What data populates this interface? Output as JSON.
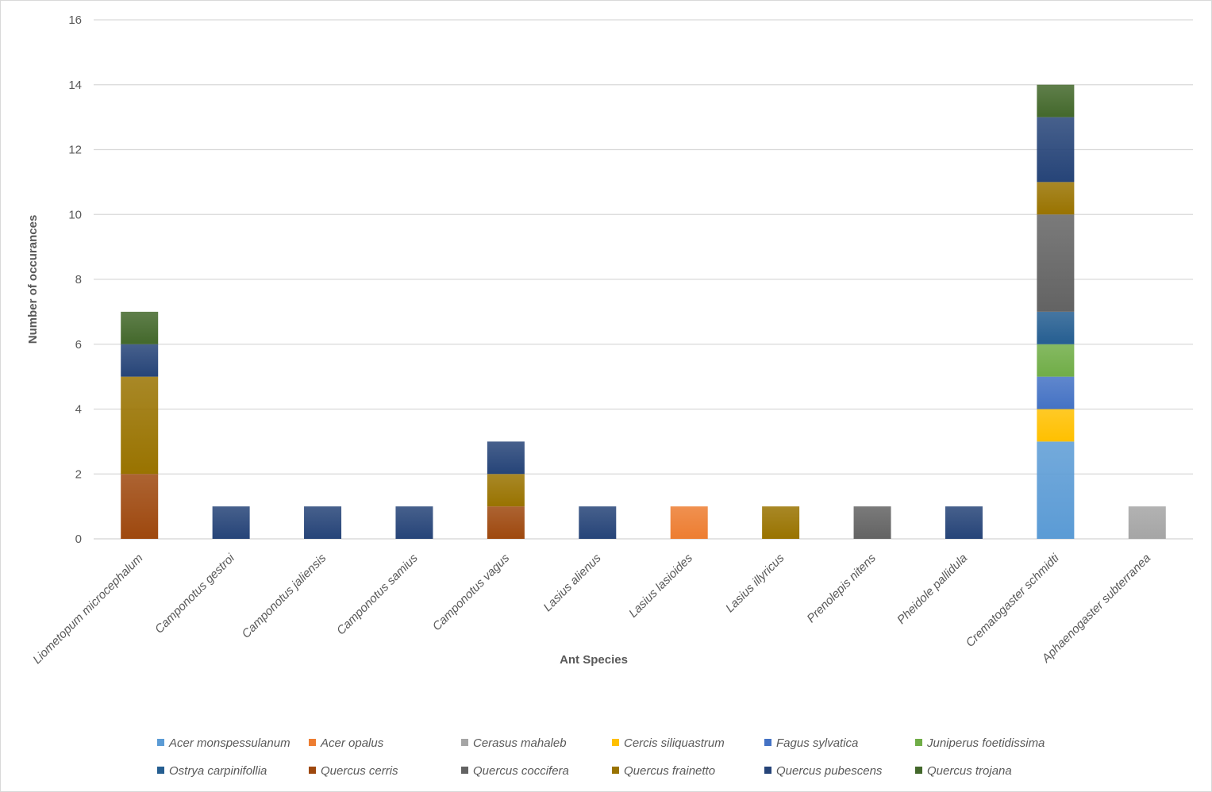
{
  "chart_data": {
    "type": "bar",
    "stacked": true,
    "title": "",
    "xlabel": "Ant Species",
    "ylabel": "Number of occurances",
    "ylim": [
      0,
      16
    ],
    "yticks": [
      0,
      2,
      4,
      6,
      8,
      10,
      12,
      14,
      16
    ],
    "grid": true,
    "legend_position": "bottom",
    "categories": [
      "Liometopum microcephalum",
      "Camponotus gestroi",
      "Camponotus jaliensis",
      "Camponotus samius",
      "Camponotus vagus",
      "Lasius alienus",
      "Lasius lasioides",
      "Lasius illyricus",
      "Prenolepis nitens",
      "Pheidole pallidula",
      "Crematogaster schmidti",
      "Aphaenogaster subterranea"
    ],
    "series": [
      {
        "name": "Acer monspessulanum",
        "color": "#5b9bd5",
        "values": [
          0,
          0,
          0,
          0,
          0,
          0,
          0,
          0,
          0,
          0,
          3,
          0
        ]
      },
      {
        "name": "Acer opalus",
        "color": "#ed7d31",
        "values": [
          0,
          0,
          0,
          0,
          0,
          0,
          1,
          0,
          0,
          0,
          0,
          0
        ]
      },
      {
        "name": "Cerasus mahaleb",
        "color": "#a5a5a5",
        "values": [
          0,
          0,
          0,
          0,
          0,
          0,
          0,
          0,
          0,
          0,
          0,
          1
        ]
      },
      {
        "name": "Cercis siliquastrum",
        "color": "#ffc000",
        "values": [
          0,
          0,
          0,
          0,
          0,
          0,
          0,
          0,
          0,
          0,
          1,
          0
        ]
      },
      {
        "name": "Fagus sylvatica",
        "color": "#4472c4",
        "values": [
          0,
          0,
          0,
          0,
          0,
          0,
          0,
          0,
          0,
          0,
          1,
          0
        ]
      },
      {
        "name": "Juniperus foetidissima",
        "color": "#70ad47",
        "values": [
          0,
          0,
          0,
          0,
          0,
          0,
          0,
          0,
          0,
          0,
          1,
          0
        ]
      },
      {
        "name": "Ostrya carpinifollia",
        "color": "#255e91",
        "values": [
          0,
          0,
          0,
          0,
          0,
          0,
          0,
          0,
          0,
          0,
          1,
          0
        ]
      },
      {
        "name": "Quercus cerris",
        "color": "#9e480e",
        "values": [
          2,
          0,
          0,
          0,
          1,
          0,
          0,
          0,
          0,
          0,
          0,
          0
        ]
      },
      {
        "name": "Quercus coccifera",
        "color": "#636363",
        "values": [
          0,
          0,
          0,
          0,
          0,
          0,
          0,
          0,
          1,
          0,
          3,
          0
        ]
      },
      {
        "name": "Quercus frainetto",
        "color": "#997300",
        "values": [
          3,
          0,
          0,
          0,
          1,
          0,
          0,
          1,
          0,
          0,
          1,
          0
        ]
      },
      {
        "name": "Quercus pubescens",
        "color": "#264478",
        "values": [
          1,
          1,
          1,
          1,
          1,
          1,
          0,
          0,
          0,
          1,
          2,
          0
        ]
      },
      {
        "name": "Quercus trojana",
        "color": "#43682b",
        "values": [
          1,
          0,
          0,
          0,
          0,
          0,
          0,
          0,
          0,
          0,
          1,
          0
        ]
      }
    ]
  }
}
